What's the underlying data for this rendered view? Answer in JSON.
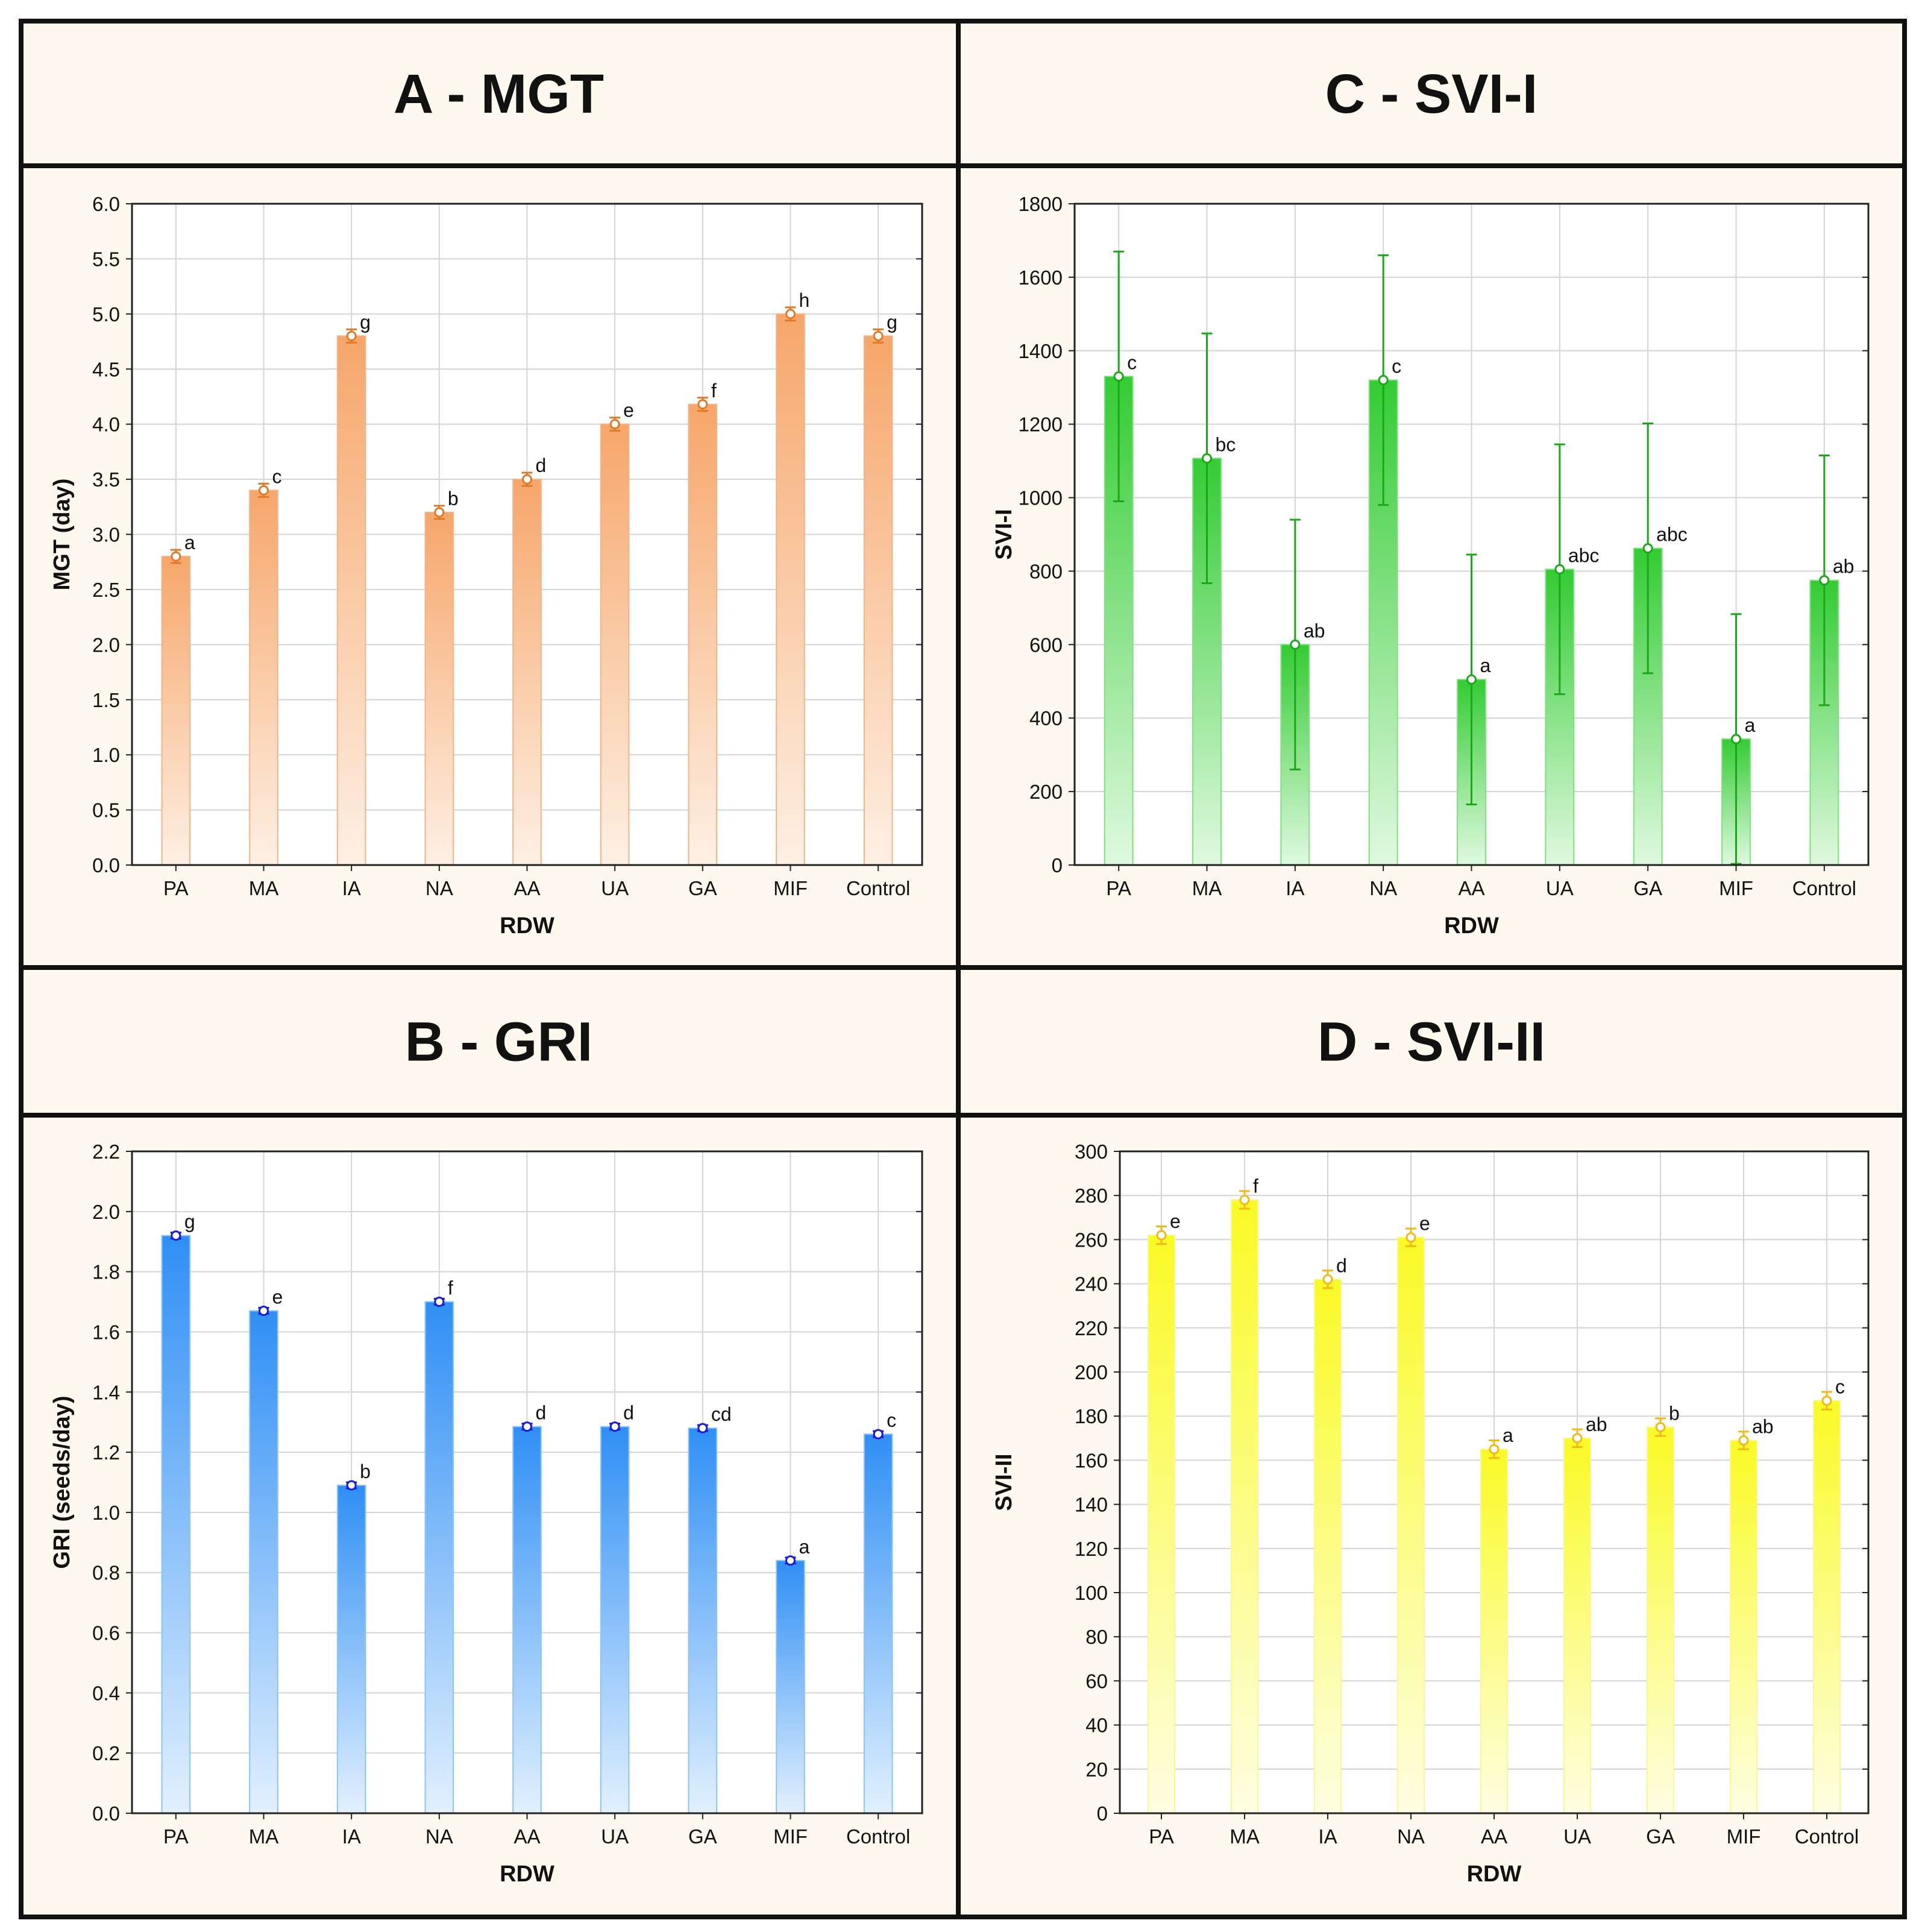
{
  "colors": {
    "panel_bg": "#fdf9ee",
    "border": "#111111",
    "grid": "#d4d4d4",
    "text": "#111111",
    "orange": "#f2a368",
    "orange_dark": "#e07a28",
    "green": "#3ccf3c",
    "green_dark": "#1aa81a",
    "blue": "#3395f5",
    "blue_dark": "#1a1adc",
    "yellow": "#fafa2e",
    "yellow_dark": "#f2b81c"
  },
  "panels": [
    {
      "id": "A",
      "title": "A - MGT",
      "color": "orange",
      "ylabel": "MGT (day)",
      "xlabel": "RDW",
      "ylim": [
        0,
        6
      ],
      "yticks": [
        "0.0",
        "0.5",
        "1.0",
        "1.5",
        "2.0",
        "2.5",
        "3.0",
        "3.5",
        "4.0",
        "4.5",
        "5.0",
        "5.5",
        "6.0"
      ],
      "ytick_values": [
        0,
        0.5,
        1,
        1.5,
        2,
        2.5,
        3,
        3.5,
        4,
        4.5,
        5,
        5.5,
        6
      ]
    },
    {
      "id": "C",
      "title": "C - SVI-I",
      "color": "green",
      "ylabel": "SVI-I",
      "xlabel": "RDW",
      "ylim": [
        0,
        1800
      ],
      "yticks": [
        "0",
        "200",
        "400",
        "600",
        "800",
        "1000",
        "1200",
        "1400",
        "1600",
        "1800"
      ],
      "ytick_values": [
        0,
        200,
        400,
        600,
        800,
        1000,
        1200,
        1400,
        1600,
        1800
      ]
    },
    {
      "id": "B",
      "title": "B - GRI",
      "color": "blue",
      "ylabel": "GRI (seeds/day)",
      "xlabel": "RDW",
      "ylim": [
        0,
        2.2
      ],
      "yticks": [
        "0.0",
        "0.2",
        "0.4",
        "0.6",
        "0.8",
        "1.0",
        "1.2",
        "1.4",
        "1.6",
        "1.8",
        "2.0",
        "2.2"
      ],
      "ytick_values": [
        0,
        0.2,
        0.4,
        0.6,
        0.8,
        1,
        1.2,
        1.4,
        1.6,
        1.8,
        2,
        2.2
      ]
    },
    {
      "id": "D",
      "title": "D - SVI-II",
      "color": "yellow",
      "ylabel": "SVI-II",
      "xlabel": "RDW",
      "ylim": [
        0,
        300
      ],
      "yticks": [
        "0",
        "20",
        "40",
        "60",
        "80",
        "100",
        "120",
        "140",
        "160",
        "180",
        "200",
        "220",
        "240",
        "260",
        "280",
        "300"
      ],
      "ytick_values": [
        0,
        20,
        40,
        60,
        80,
        100,
        120,
        140,
        160,
        180,
        200,
        220,
        240,
        260,
        280,
        300
      ]
    }
  ],
  "chart_data": [
    {
      "type": "bar",
      "panel": "A",
      "title": "A - MGT",
      "xlabel": "RDW",
      "ylabel": "MGT (day)",
      "ylim": [
        0,
        6
      ],
      "categories": [
        "PA",
        "MA",
        "IA",
        "NA",
        "AA",
        "UA",
        "GA",
        "MIF",
        "Control"
      ],
      "values": [
        2.8,
        3.4,
        4.8,
        3.2,
        3.5,
        4.0,
        4.18,
        5.0,
        4.8
      ],
      "errors": [
        0.06,
        0.06,
        0.06,
        0.06,
        0.06,
        0.06,
        0.06,
        0.06,
        0.06
      ],
      "letters": [
        "a",
        "c",
        "g",
        "b",
        "d",
        "e",
        "f",
        "h",
        "g"
      ]
    },
    {
      "type": "bar",
      "panel": "C",
      "title": "C - SVI-I",
      "xlabel": "RDW",
      "ylabel": "SVI-I",
      "ylim": [
        0,
        1800
      ],
      "categories": [
        "PA",
        "MA",
        "IA",
        "NA",
        "AA",
        "UA",
        "GA",
        "MIF",
        "Control"
      ],
      "values": [
        1330,
        1107,
        600,
        1320,
        505,
        805,
        862,
        343,
        775
      ],
      "errors": [
        340,
        340,
        340,
        340,
        340,
        340,
        340,
        340,
        340
      ],
      "letters": [
        "c",
        "bc",
        "ab",
        "c",
        "a",
        "abc",
        "abc",
        "a",
        "ab"
      ]
    },
    {
      "type": "bar",
      "panel": "B",
      "title": "B - GRI",
      "xlabel": "RDW",
      "ylabel": "GRI (seeds/day)",
      "ylim": [
        0,
        2.2
      ],
      "categories": [
        "PA",
        "MA",
        "IA",
        "NA",
        "AA",
        "UA",
        "GA",
        "MIF",
        "Control"
      ],
      "values": [
        1.92,
        1.67,
        1.09,
        1.7,
        1.285,
        1.285,
        1.28,
        0.84,
        1.26
      ],
      "errors": [
        0.01,
        0.01,
        0.01,
        0.01,
        0.01,
        0.01,
        0.01,
        0.01,
        0.01
      ],
      "letters": [
        "g",
        "e",
        "b",
        "f",
        "d",
        "d",
        "cd",
        "a",
        "c"
      ]
    },
    {
      "type": "bar",
      "panel": "D",
      "title": "D - SVI-II",
      "xlabel": "RDW",
      "ylabel": "SVI-II",
      "ylim": [
        0,
        300
      ],
      "categories": [
        "PA",
        "MA",
        "IA",
        "NA",
        "AA",
        "UA",
        "GA",
        "MIF",
        "Control"
      ],
      "values": [
        262,
        278,
        242,
        261,
        165,
        170,
        175,
        169,
        187
      ],
      "errors": [
        4,
        4,
        4,
        4,
        4,
        4,
        4,
        4,
        4
      ],
      "letters": [
        "e",
        "f",
        "d",
        "e",
        "a",
        "ab",
        "b",
        "ab",
        "c"
      ]
    }
  ]
}
